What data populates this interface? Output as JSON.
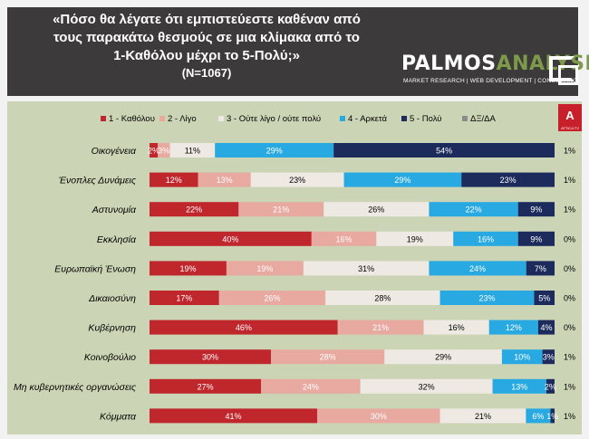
{
  "header": {
    "title_lines": [
      "«Πόσο θα λέγατε ότι εμπιστεύεστε καθέναν από",
      "τους παρακάτω θεσμούς σε μια κλίμακα από το",
      "1-Καθόλου μέχρι το 5-Πολύ;»"
    ],
    "sample": "(N=1067)"
  },
  "logo": {
    "part1": "PALMOS",
    "part2": "ANALYSIS",
    "tagline": "MARKET RESEARCH | WEB DEVELOPMENT | CONSULTING",
    "badge": "Α",
    "badge_sub": "ATTICA TV"
  },
  "chart_data": {
    "type": "bar",
    "stacked": true,
    "orientation": "horizontal",
    "title": "«Πόσο θα λέγατε ότι εμπιστεύεστε καθέναν από τους παρακάτω θεσμούς σε μια κλίμακα από το 1-Καθόλου μέχρι το 5-Πολύ;» (N=1067)",
    "categories": [
      "Οικογένεια",
      "Ένοπλες Δυνάμεις",
      "Αστυνομία",
      "Εκκλησία",
      "Ευρωπαϊκή Ένωση",
      "Δικαιοσύνη",
      "Κυβέρνηση",
      "Κοινοβούλιο",
      "Μη κυβερνητικές οργανώσεις",
      "Κόμματα"
    ],
    "series": [
      {
        "name": "1 - Καθόλου",
        "color": "#c0272d",
        "text_color": "#ffffff",
        "values": [
          2,
          12,
          22,
          40,
          19,
          17,
          46,
          30,
          27,
          41
        ]
      },
      {
        "name": "2 - Λίγο",
        "color": "#e8a9a0",
        "text_color": "#ffffff",
        "values": [
          3,
          13,
          21,
          16,
          19,
          26,
          21,
          28,
          24,
          30
        ]
      },
      {
        "name": "3 - Ούτε λίγο / ούτε πολύ",
        "color": "#efe9e3",
        "text_color": "#000000",
        "values": [
          11,
          23,
          26,
          19,
          31,
          28,
          16,
          29,
          32,
          21
        ]
      },
      {
        "name": "4 - Αρκετά",
        "color": "#29a9e1",
        "text_color": "#ffffff",
        "values": [
          29,
          29,
          22,
          16,
          24,
          23,
          12,
          10,
          13,
          6
        ]
      },
      {
        "name": "5 - Πολύ",
        "color": "#1c2a5c",
        "text_color": "#ffffff",
        "values": [
          54,
          23,
          9,
          9,
          7,
          5,
          4,
          3,
          2,
          1
        ]
      },
      {
        "name": "ΔΞ/ΔΑ",
        "color": "#8c8c8c",
        "text_color": "#000000",
        "values": [
          1,
          1,
          1,
          0,
          0,
          0,
          0,
          1,
          1,
          1
        ]
      }
    ],
    "value_suffix": "%",
    "legend_position": "top",
    "xlim": [
      0,
      100
    ]
  }
}
